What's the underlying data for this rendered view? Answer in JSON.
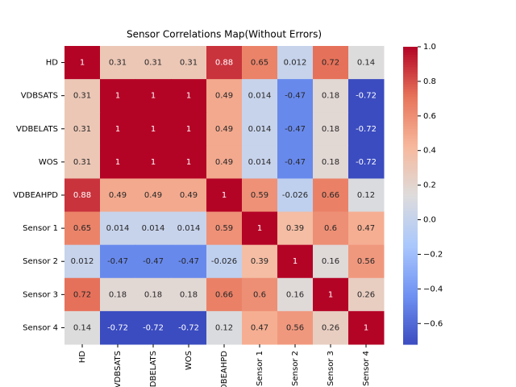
{
  "chart_data": {
    "type": "heatmap",
    "title": "Sensor Correlations Map(Without Errors)",
    "x_categories": [
      "HD",
      "VDBSATS",
      "VDBELATS",
      "WOS",
      "VDBEAHPD",
      "Sensor 1",
      "Sensor 2",
      "Sensor 3",
      "Sensor 4"
    ],
    "y_categories": [
      "HD",
      "VDBSATS",
      "VDBELATS",
      "WOS",
      "VDBEAHPD",
      "Sensor 1",
      "Sensor 2",
      "Sensor 3",
      "Sensor 4"
    ],
    "values": [
      [
        1,
        0.31,
        0.31,
        0.31,
        0.88,
        0.65,
        0.012,
        0.72,
        0.14
      ],
      [
        0.31,
        1,
        1,
        1,
        0.49,
        0.014,
        -0.47,
        0.18,
        -0.72
      ],
      [
        0.31,
        1,
        1,
        1,
        0.49,
        0.014,
        -0.47,
        0.18,
        -0.72
      ],
      [
        0.31,
        1,
        1,
        1,
        0.49,
        0.014,
        -0.47,
        0.18,
        -0.72
      ],
      [
        0.88,
        0.49,
        0.49,
        0.49,
        1,
        0.59,
        -0.026,
        0.66,
        0.12
      ],
      [
        0.65,
        0.014,
        0.014,
        0.014,
        0.59,
        1,
        0.39,
        0.6,
        0.47
      ],
      [
        0.012,
        -0.47,
        -0.47,
        -0.47,
        -0.026,
        0.39,
        1,
        0.16,
        0.56
      ],
      [
        0.72,
        0.18,
        0.18,
        0.18,
        0.66,
        0.6,
        0.16,
        1,
        0.26
      ],
      [
        0.14,
        -0.72,
        -0.72,
        -0.72,
        0.12,
        0.47,
        0.56,
        0.26,
        1
      ]
    ],
    "colormap": [
      "#3b4cc0",
      "#6f92f3",
      "#aac7fd",
      "#dddcdc",
      "#f7b89c",
      "#e7745b",
      "#b40426"
    ],
    "clim": [
      -0.72,
      1
    ],
    "cticks": [
      {
        "value": -0.6,
        "label": "−0.6"
      },
      {
        "value": -0.4,
        "label": "−0.4"
      },
      {
        "value": -0.2,
        "label": "−0.2"
      },
      {
        "value": 0,
        "label": "0.0"
      },
      {
        "value": 0.2,
        "label": "0.2"
      },
      {
        "value": 0.4,
        "label": "0.4"
      },
      {
        "value": 0.6,
        "label": "0.6"
      },
      {
        "value": 0.8,
        "label": "0.8"
      },
      {
        "value": 1,
        "label": "1.0"
      }
    ]
  }
}
